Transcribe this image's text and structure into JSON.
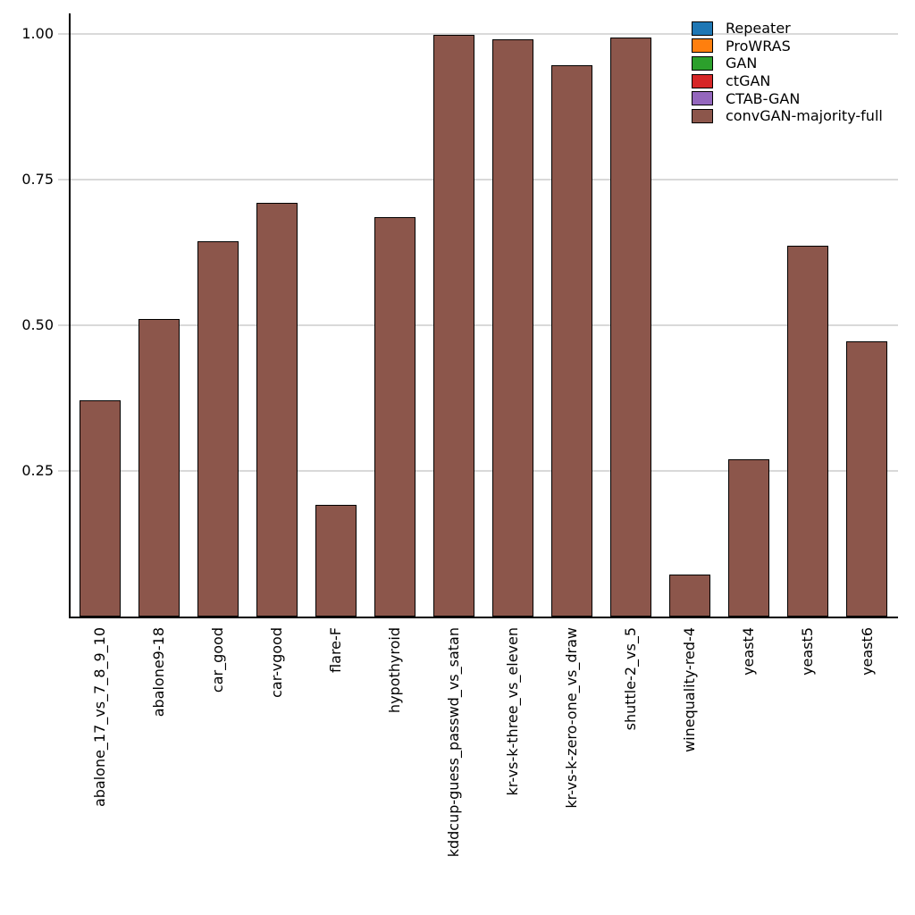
{
  "chart_data": {
    "type": "bar",
    "title": "",
    "xlabel": "",
    "ylabel": "",
    "categories": [
      "abalone_17_vs_7_8_9_10",
      "abalone9-18",
      "car_good",
      "car-vgood",
      "flare-F",
      "hypothyroid",
      "kddcup-guess_passwd_vs_satan",
      "kr-vs-k-three_vs_eleven",
      "kr-vs-k-zero-one_vs_draw",
      "shuttle-2_vs_5",
      "winequality-red-4",
      "yeast4",
      "yeast5",
      "yeast6"
    ],
    "series": [
      {
        "name": "convGAN-majority-full",
        "color": "#8c564b",
        "values": [
          0.371,
          0.511,
          0.644,
          0.71,
          0.192,
          0.686,
          0.998,
          0.991,
          0.946,
          0.994,
          0.072,
          0.27,
          0.637,
          0.472
        ]
      }
    ],
    "legend": [
      {
        "label": "Repeater",
        "color": "#1f77b4"
      },
      {
        "label": "ProWRAS",
        "color": "#ff7f0e"
      },
      {
        "label": "GAN",
        "color": "#2ca02c"
      },
      {
        "label": "ctGAN",
        "color": "#d62728"
      },
      {
        "label": "CTAB-GAN",
        "color": "#9467bd"
      },
      {
        "label": "convGAN-majority-full",
        "color": "#8c564b"
      }
    ],
    "legend_position": "upper-right",
    "yticks": [
      0.25,
      0.5,
      0.75,
      1.0
    ],
    "ytick_labels": [
      "0.25",
      "0.50",
      "0.75",
      "1.00"
    ],
    "ylim": [
      0,
      1.035
    ],
    "grid": true,
    "grid_color": "#d9d9d9",
    "bar_edge_color": "#000000",
    "axis_color": "#000000",
    "background_color": "#ffffff"
  }
}
